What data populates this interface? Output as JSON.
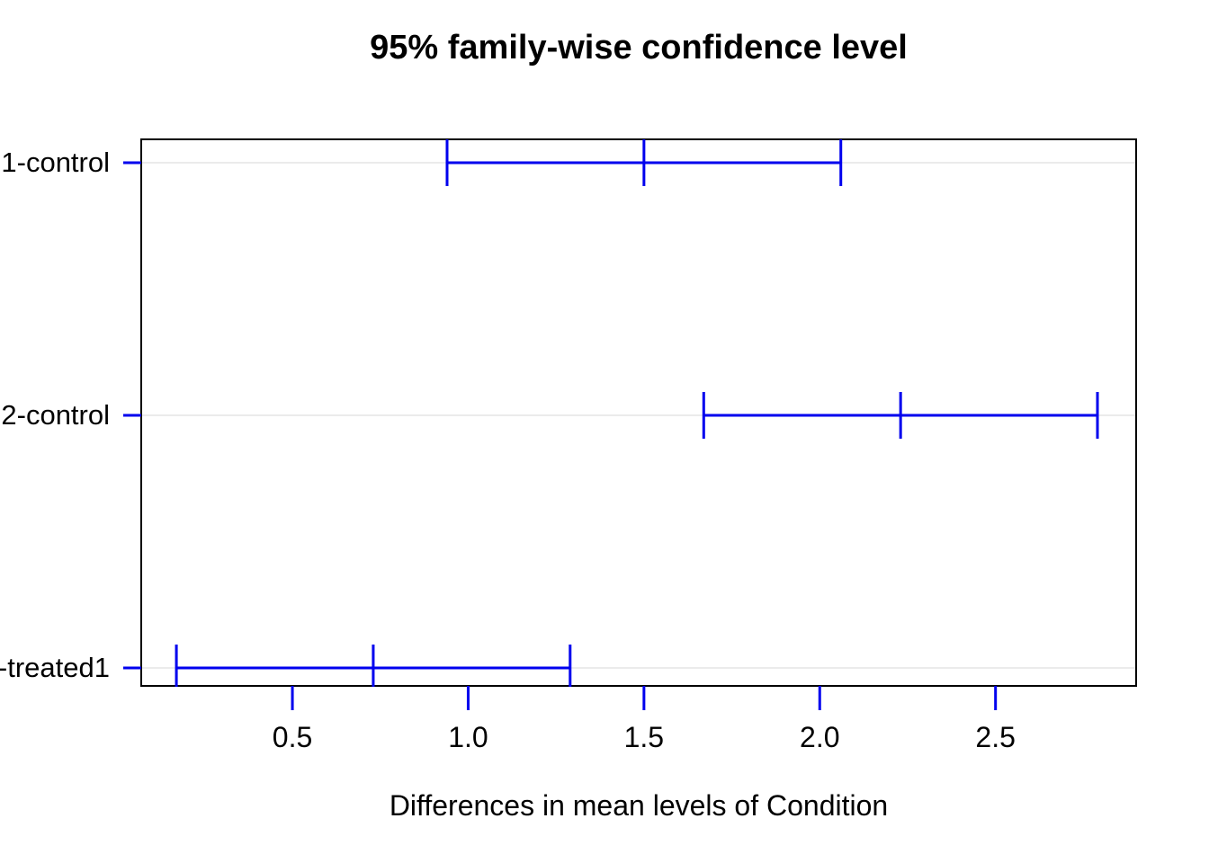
{
  "title": "95% family-wise confidence level",
  "x_axis_title": "Differences in mean levels of Condition",
  "chart_data": {
    "type": "error-bar-interval",
    "title": "95% family-wise confidence level",
    "xlabel": "Differences in mean levels of Condition",
    "ylabel": "",
    "xlim": [
      0.07,
      2.9
    ],
    "grid": "light-gray horizontal reference line per row",
    "legend": "none",
    "rows": [
      {
        "label": "1-control",
        "lwr": 0.94,
        "center": 1.5,
        "upr": 2.06
      },
      {
        "label": "2-control",
        "lwr": 1.67,
        "center": 2.23,
        "upr": 2.79
      },
      {
        "label": "-treated1",
        "lwr": 0.17,
        "center": 0.73,
        "upr": 1.29
      }
    ],
    "x_ticks": [
      {
        "value": 0.5,
        "label": "0.5"
      },
      {
        "value": 1.0,
        "label": "1.0"
      },
      {
        "value": 1.5,
        "label": "1.5"
      },
      {
        "value": 2.0,
        "label": "2.0"
      },
      {
        "value": 2.5,
        "label": "2.5"
      }
    ],
    "colors": {
      "interval": "#0000ee",
      "ticks": "#0000ee",
      "reference_line": "#ebebeb",
      "box": "#000000",
      "text": "#000000"
    }
  }
}
